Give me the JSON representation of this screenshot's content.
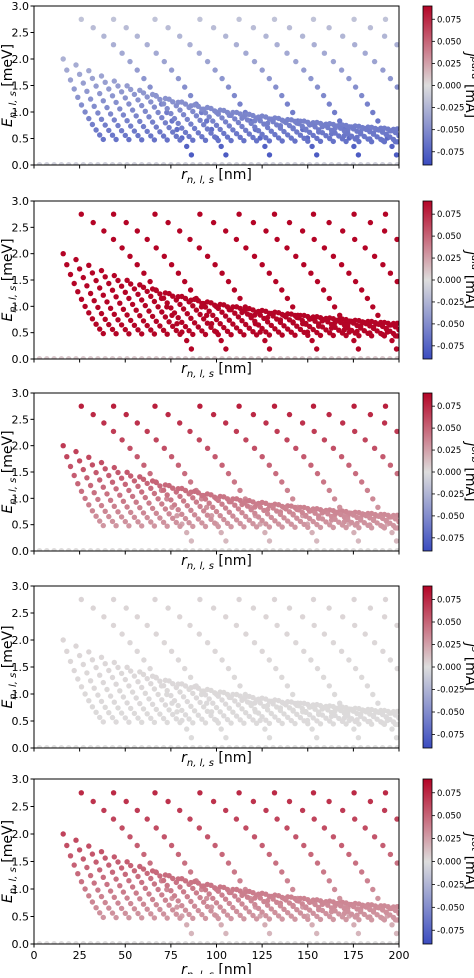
{
  "figure": {
    "colorbar_ticks": [
      "0.075",
      "0.050",
      "0.025",
      "0.000",
      "-0.025",
      "-0.050",
      "-0.075"
    ],
    "colorbar_tick_values": [
      0.075,
      0.05,
      0.025,
      0.0,
      -0.025,
      -0.05,
      -0.075
    ],
    "colormap": [
      "#3b4cc0",
      "#dddddd",
      "#b40426"
    ]
  },
  "chart_data": [
    {
      "type": "scatter",
      "ylabel": "E_{n,l,s} [meV]",
      "ylabel_main": "E",
      "ylabel_sub": "n, l, s",
      "ylabel_unit": " [meV]",
      "xlabel": "r_{n,l,s} [nm]",
      "xlabel_main": "r",
      "xlabel_sub": "n, l, s",
      "xlabel_unit": " [nm]",
      "colorbar_label": "j^{para} [mA]",
      "cb_main": "j",
      "cb_sup": "para",
      "cb_unit": " [mA]",
      "x_ticks": [],
      "xlim": [
        0,
        200
      ],
      "ylim": [
        0,
        3.0
      ],
      "yticks": [
        "0.0",
        "0.5",
        "1.0",
        "1.5",
        "2.0",
        "2.5",
        "3.0"
      ],
      "clim": [
        -0.09,
        0.09
      ],
      "current_profile": {
        "low": -0.085,
        "mid": -0.05,
        "high": -0.01
      },
      "series_model": "E = l(l+1)/2 spectrum, r = sqrt(2l+1)"
    },
    {
      "type": "scatter",
      "ylabel": "E_{n,l,s} [meV]",
      "ylabel_main": "E",
      "ylabel_sub": "n, l, s",
      "ylabel_unit": " [meV]",
      "xlabel": "r_{n,l,s} [nm]",
      "xlabel_main": "r",
      "xlabel_sub": "n, l, s",
      "xlabel_unit": " [nm]",
      "colorbar_label": "j^{dia} [mA]",
      "cb_main": "j",
      "cb_sup": "dia",
      "cb_unit": " [mA]",
      "x_ticks": [],
      "xlim": [
        0,
        200
      ],
      "ylim": [
        0,
        3.0
      ],
      "yticks": [
        "0.0",
        "0.5",
        "1.0",
        "1.5",
        "2.0",
        "2.5",
        "3.0"
      ],
      "clim": [
        -0.09,
        0.09
      ],
      "current_profile": {
        "low": 0.09,
        "mid": 0.09,
        "high": 0.09
      },
      "series_model": "E = l(l+1)/2 spectrum, r = sqrt(2l+1)"
    },
    {
      "type": "scatter",
      "ylabel": "E_{n,l,s} [meV]",
      "ylabel_main": "E",
      "ylabel_sub": "n, l, s",
      "ylabel_unit": " [meV]",
      "xlabel": "r_{n,l,s} [nm]",
      "xlabel_main": "r",
      "xlabel_sub": "n, l, s",
      "xlabel_unit": " [nm]",
      "colorbar_label": "j^{orb} [mA]",
      "cb_main": "j",
      "cb_sup": "orb",
      "cb_unit": " [mA]",
      "x_ticks": [],
      "xlim": [
        0,
        200
      ],
      "ylim": [
        0,
        3.0
      ],
      "yticks": [
        "0.0",
        "0.5",
        "1.0",
        "1.5",
        "2.0",
        "2.5",
        "3.0"
      ],
      "clim": [
        -0.09,
        0.09
      ],
      "current_profile": {
        "low": 0.01,
        "mid": 0.05,
        "high": 0.085
      },
      "series_model": "E = l(l+1)/2 spectrum, r = sqrt(2l+1)"
    },
    {
      "type": "scatter",
      "ylabel": "E_{n,l,s} [meV]",
      "ylabel_main": "E",
      "ylabel_sub": "n, l, s",
      "ylabel_unit": " [meV]",
      "xlabel": "r_{n,l,s} [nm]",
      "xlabel_main": "r",
      "xlabel_sub": "n, l, s",
      "xlabel_unit": " [nm]",
      "colorbar_label": "j^{s} [mA]",
      "cb_main": "j",
      "cb_sup": "s",
      "cb_unit": " [mA]",
      "x_ticks": [],
      "xlim": [
        0,
        200
      ],
      "ylim": [
        0,
        3.0
      ],
      "yticks": [
        "0.0",
        "0.5",
        "1.0",
        "1.5",
        "2.0",
        "2.5",
        "3.0"
      ],
      "clim": [
        -0.09,
        0.09
      ],
      "current_profile": {
        "low": 0.0,
        "mid": 0.002,
        "high": 0.004
      },
      "series_model": "E = l(l+1)/2 spectrum, r = sqrt(2l+1)"
    },
    {
      "type": "scatter",
      "ylabel": "E_{n,l,s} [meV]",
      "ylabel_main": "E",
      "ylabel_sub": "n, l, s",
      "ylabel_unit": " [meV]",
      "xlabel": "r_{n,l,s} [nm]",
      "xlabel_main": "r",
      "xlabel_sub": "n, l, s",
      "xlabel_unit": " [nm]",
      "colorbar_label": "j^{tot} [mA]",
      "cb_main": "j",
      "cb_sup": "tot",
      "cb_unit": " [mA]",
      "x_ticks": [
        "0",
        "25",
        "50",
        "75",
        "100",
        "125",
        "150",
        "175",
        "200"
      ],
      "xlim": [
        0,
        200
      ],
      "ylim": [
        0,
        3.0
      ],
      "yticks": [
        "0.0",
        "0.5",
        "1.0",
        "1.5",
        "2.0",
        "2.5",
        "3.0"
      ],
      "clim": [
        -0.09,
        0.09
      ],
      "current_profile": {
        "low": 0.012,
        "mid": 0.05,
        "high": 0.08
      },
      "series_model": "E = l(l+1)/2 spectrum, r = sqrt(2l+1)"
    }
  ]
}
